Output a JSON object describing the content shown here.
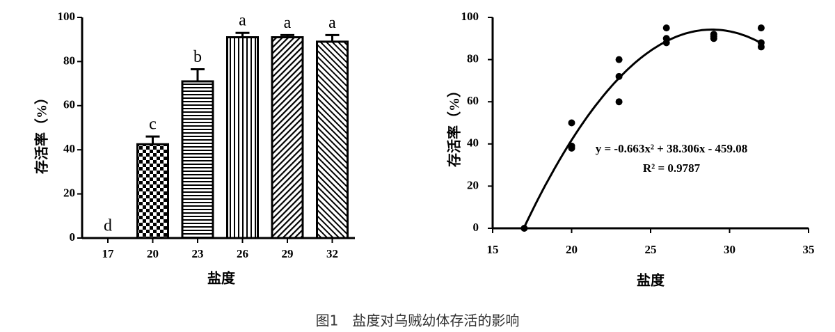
{
  "caption": "图1　盐度对乌贼幼体存活的影响",
  "chart_data": [
    {
      "type": "bar",
      "categories": [
        "17",
        "20",
        "23",
        "26",
        "29",
        "32"
      ],
      "values": [
        0,
        42.5,
        71,
        91,
        91,
        89
      ],
      "errors": [
        0,
        3.5,
        5.5,
        2,
        1,
        3
      ],
      "group_labels": [
        "d",
        "c",
        "b",
        "a",
        "a",
        "a"
      ],
      "ylim": [
        0,
        100
      ],
      "yticks": [
        0,
        20,
        40,
        60,
        80,
        100
      ],
      "xlabel": "盐度",
      "ylabel": "存活率（%）",
      "color": "#000000"
    },
    {
      "type": "scatter",
      "x": [
        17,
        20,
        20,
        20,
        23,
        23,
        23,
        26,
        26,
        26,
        29,
        29,
        29,
        32,
        32,
        32
      ],
      "values": [
        0,
        50,
        38,
        39,
        80,
        72,
        60,
        95,
        90,
        88,
        91,
        90,
        92,
        95,
        86,
        88
      ],
      "xlim": [
        15,
        35
      ],
      "xticks": [
        15,
        20,
        25,
        30,
        35
      ],
      "ylim": [
        0,
        100
      ],
      "yticks": [
        0,
        20,
        40,
        60,
        80,
        100
      ],
      "xlabel": "盐度",
      "ylabel": "存活率（%）",
      "color": "#000000",
      "fit": {
        "coefficients": [
          -0.663,
          38.306,
          -459.08
        ],
        "label": "y = -0.663x² + 38.306x - 459.08",
        "r2_label": "R² = 0.9787"
      }
    }
  ]
}
